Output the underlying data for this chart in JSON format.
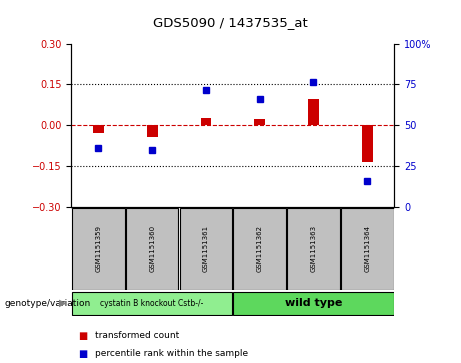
{
  "title": "GDS5090 / 1437535_at",
  "samples": [
    "GSM1151359",
    "GSM1151360",
    "GSM1151361",
    "GSM1151362",
    "GSM1151363",
    "GSM1151364"
  ],
  "x_positions": [
    1,
    2,
    3,
    4,
    5,
    6
  ],
  "red_values": [
    -0.027,
    -0.045,
    0.028,
    0.022,
    0.095,
    -0.135
  ],
  "blue_values_mapped": [
    -0.085,
    -0.09,
    0.13,
    0.095,
    0.16,
    -0.205
  ],
  "ylim_left": [
    -0.3,
    0.3
  ],
  "ylim_right": [
    0,
    100
  ],
  "yticks_left": [
    -0.3,
    -0.15,
    0,
    0.15,
    0.3
  ],
  "yticks_right": [
    0,
    25,
    50,
    75,
    100
  ],
  "group1_label": "cystatin B knockout Cstb-/-",
  "group2_label": "wild type",
  "group1_color": "#90EE90",
  "group2_color": "#5DD85D",
  "group_label_prefix": "genotype/variation",
  "legend_red": "transformed count",
  "legend_blue": "percentile rank within the sample",
  "red_color": "#CC0000",
  "blue_color": "#0000CC",
  "zero_line_color": "#CC0000",
  "dotted_line_color": "#000000",
  "bg_sample_boxes": "#C0C0C0"
}
